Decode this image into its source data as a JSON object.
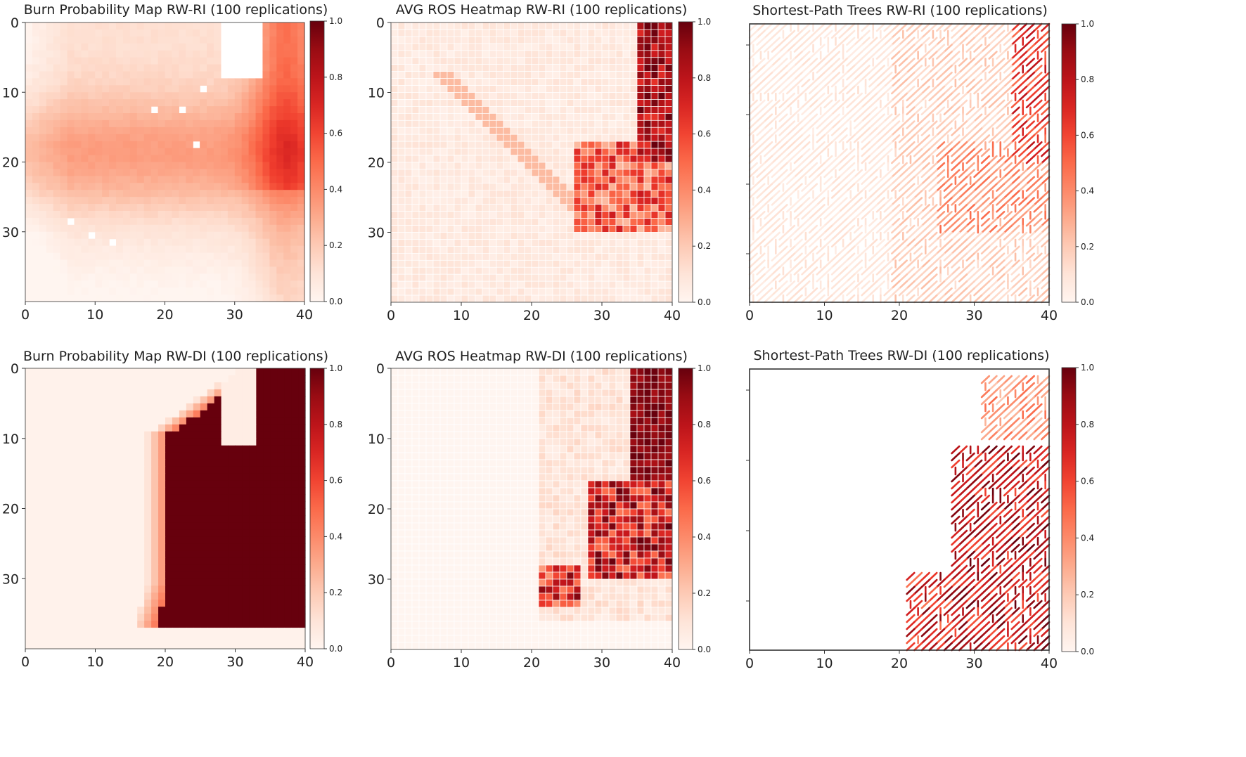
{
  "figure": {
    "colormap": [
      "#fff5f0",
      "#fee0d2",
      "#fcbba1",
      "#fc9272",
      "#fb6a4a",
      "#ef3b2c",
      "#cb181d",
      "#a50f15",
      "#67000d"
    ]
  },
  "chart_data": [
    {
      "type": "heatmap",
      "title": "Burn Probability Map RW-RI (100 replications)",
      "xticks": [
        "0",
        "10",
        "20",
        "30",
        "40"
      ],
      "yticks": [
        "0",
        "10",
        "20",
        "30"
      ],
      "colorbar_ticks": [
        "0.0",
        "0.2",
        "0.4",
        "0.6",
        "0.8",
        "1.0"
      ],
      "xlim": [
        0,
        40
      ],
      "ylim": [
        40,
        0
      ],
      "clim": [
        0,
        1
      ],
      "grid_size": [
        40,
        40
      ],
      "cell_grid": false,
      "field": "diffuse_moderate"
    },
    {
      "type": "heatmap",
      "title": "AVG ROS Heatmap RW-RI (100 replications)",
      "xticks": [
        "0",
        "10",
        "20",
        "30",
        "40"
      ],
      "yticks": [
        "0",
        "10",
        "20",
        "30"
      ],
      "colorbar_ticks": [
        "0.0",
        "0.2",
        "0.4",
        "0.6",
        "0.8",
        "1.0"
      ],
      "xlim": [
        0,
        40
      ],
      "ylim": [
        40,
        0
      ],
      "clim": [
        0,
        1
      ],
      "grid_size": [
        40,
        40
      ],
      "cell_grid": true,
      "field": "ros_moderate"
    },
    {
      "type": "heatmap",
      "title": "Shortest-Path Trees RW-RI (100 replications)",
      "xticks": [
        "0",
        "10",
        "20",
        "30",
        "40"
      ],
      "yticks": [],
      "colorbar_ticks": [
        "0.0",
        "0.2",
        "0.4",
        "0.6",
        "0.8",
        "1.0"
      ],
      "xlim": [
        0,
        40
      ],
      "ylim": [
        40,
        0
      ],
      "clim": [
        0,
        1
      ],
      "grid_size": [
        40,
        40
      ],
      "style": "paths",
      "field": "paths_moderate"
    },
    {
      "type": "heatmap",
      "title": "Burn Probability Map RW-DI (100 replications)",
      "xticks": [
        "0",
        "10",
        "20",
        "30",
        "40"
      ],
      "yticks": [
        "0",
        "10",
        "20",
        "30"
      ],
      "colorbar_ticks": [
        "0.0",
        "0.2",
        "0.4",
        "0.6",
        "0.8",
        "1.0"
      ],
      "xlim": [
        0,
        40
      ],
      "ylim": [
        40,
        0
      ],
      "clim": [
        0,
        1
      ],
      "grid_size": [
        40,
        40
      ],
      "cell_grid": false,
      "field": "diffuse_intense"
    },
    {
      "type": "heatmap",
      "title": "AVG ROS Heatmap RW-DI (100 replications)",
      "xticks": [
        "0",
        "10",
        "20",
        "30",
        "40"
      ],
      "yticks": [
        "0",
        "10",
        "20",
        "30"
      ],
      "colorbar_ticks": [
        "0.0",
        "0.2",
        "0.4",
        "0.6",
        "0.8",
        "1.0"
      ],
      "xlim": [
        0,
        40
      ],
      "ylim": [
        40,
        0
      ],
      "clim": [
        0,
        1
      ],
      "grid_size": [
        40,
        40
      ],
      "cell_grid": true,
      "field": "ros_intense"
    },
    {
      "type": "heatmap",
      "title": "Shortest-Path Trees RW-DI (100 replications)",
      "xticks": [
        "0",
        "10",
        "20",
        "30",
        "40"
      ],
      "yticks": [],
      "colorbar_ticks": [
        "0.0",
        "0.2",
        "0.4",
        "0.6",
        "0.8",
        "1.0"
      ],
      "xlim": [
        0,
        40
      ],
      "ylim": [
        40,
        0
      ],
      "clim": [
        0,
        1
      ],
      "grid_size": [
        40,
        40
      ],
      "style": "paths",
      "field": "paths_intense"
    }
  ]
}
